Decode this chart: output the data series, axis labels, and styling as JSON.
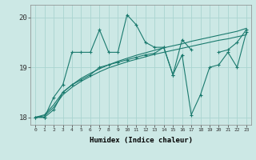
{
  "xlabel": "Humidex (Indice chaleur)",
  "background_color": "#cce8e5",
  "grid_color": "#aad4d0",
  "line_color": "#1a7a6e",
  "x_values": [
    0,
    1,
    2,
    3,
    4,
    5,
    6,
    7,
    8,
    9,
    10,
    11,
    12,
    13,
    14,
    15,
    16,
    17,
    18,
    19,
    20,
    21,
    22,
    23
  ],
  "line_jagged1": [
    18.0,
    18.0,
    18.4,
    18.65,
    19.3,
    19.3,
    19.3,
    19.75,
    19.3,
    19.3,
    20.05,
    19.85,
    19.5,
    19.4,
    19.4,
    18.85,
    19.55,
    19.35,
    null,
    null,
    19.3,
    19.35,
    19.5,
    19.75
  ],
  "line_smooth_top": [
    18.0,
    18.05,
    18.25,
    18.5,
    18.65,
    18.78,
    18.88,
    18.97,
    19.05,
    19.12,
    19.18,
    19.24,
    19.29,
    19.34,
    19.39,
    19.43,
    19.47,
    19.52,
    19.56,
    19.6,
    19.64,
    19.68,
    19.72,
    19.78
  ],
  "line_smooth_bot": [
    18.0,
    18.03,
    18.2,
    18.45,
    18.6,
    18.72,
    18.82,
    18.91,
    18.99,
    19.05,
    19.11,
    19.16,
    19.21,
    19.26,
    19.3,
    19.34,
    19.38,
    19.42,
    19.46,
    19.5,
    19.54,
    19.57,
    19.61,
    19.65
  ],
  "line_jagged2": [
    18.0,
    18.0,
    18.15,
    18.5,
    18.65,
    18.75,
    18.85,
    19.0,
    19.05,
    19.1,
    19.15,
    19.2,
    19.25,
    19.28,
    19.4,
    18.85,
    19.25,
    18.05,
    18.45,
    19.0,
    19.05,
    19.3,
    19.0,
    19.7
  ],
  "ylim": [
    17.85,
    20.25
  ],
  "yticks": [
    18,
    19,
    20
  ],
  "xticks": [
    0,
    1,
    2,
    3,
    4,
    5,
    6,
    7,
    8,
    9,
    10,
    11,
    12,
    13,
    14,
    15,
    16,
    17,
    18,
    19,
    20,
    21,
    22,
    23
  ]
}
